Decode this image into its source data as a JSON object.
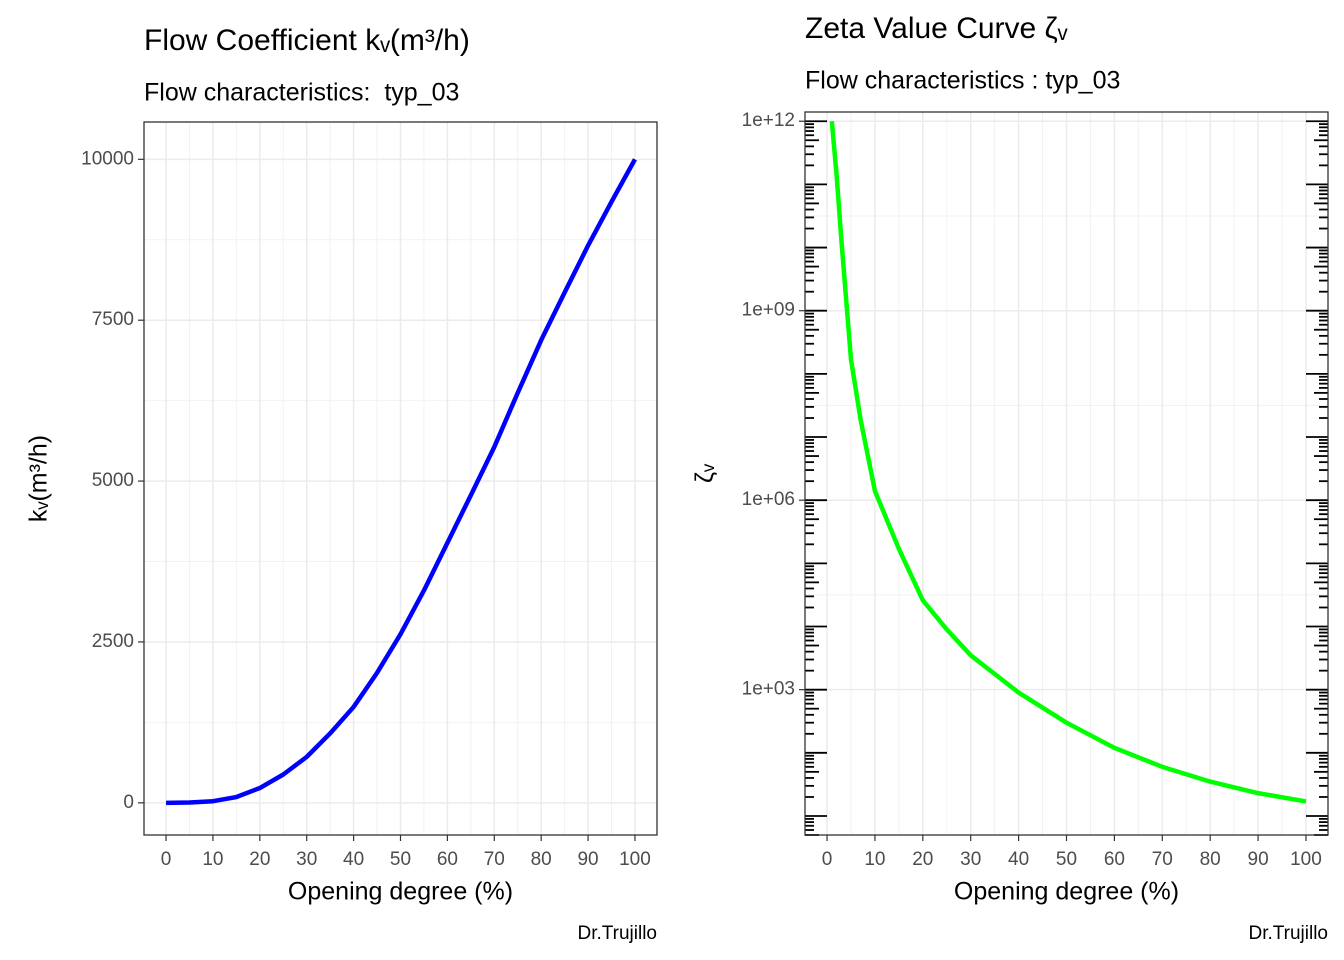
{
  "chart_data": [
    {
      "type": "line",
      "title": "Flow Coefficient kᵥ(m³/h)",
      "subtitle": "Flow characteristics:  typ_03",
      "x_label": "Opening degree (%)",
      "y_label": "kᵥ(m³/h)",
      "caption": "Dr.Trujillo",
      "x": [
        0,
        5,
        10,
        15,
        20,
        25,
        30,
        35,
        40,
        45,
        50,
        55,
        60,
        65,
        70,
        75,
        80,
        85,
        90,
        95,
        100
      ],
      "series": [
        {
          "color": "#0000ff",
          "values": [
            0,
            5,
            25,
            90,
            230,
            440,
            714,
            1080,
            1490,
            2020,
            2620,
            3300,
            4040,
            4780,
            5530,
            6370,
            7190,
            7930,
            8660,
            9340,
            10000
          ]
        }
      ],
      "xlim": [
        -4.7,
        104.7
      ],
      "xticks": [
        0,
        10,
        20,
        30,
        40,
        50,
        60,
        70,
        80,
        90,
        100
      ],
      "ylim": [
        -500,
        10580
      ],
      "yticks": [
        0,
        2500,
        5000,
        7500,
        10000
      ],
      "grid": true,
      "log_y": false
    },
    {
      "type": "line",
      "title": "Zeta Value Curve ζᵥ",
      "subtitle": "Flow characteristics : typ_03",
      "x_label": "Opening degree (%)",
      "y_label": "ζᵥ",
      "caption": "Dr.Trujillo",
      "x": [
        1,
        2,
        3,
        5,
        7,
        10,
        15,
        20,
        25,
        30,
        40,
        50,
        60,
        70,
        80,
        90,
        100
      ],
      "series": [
        {
          "color": "#00ff00",
          "values": [
            1000000000000,
            140000000000,
            13000000000,
            170000000,
            19000000,
            1400000,
            170000,
            26000,
            9000,
            3500,
            900,
            300,
            120,
            60,
            35,
            23,
            17
          ]
        }
      ],
      "xlim": [
        -4.6,
        104.6
      ],
      "xticks": [
        0,
        10,
        20,
        30,
        40,
        50,
        60,
        70,
        80,
        90,
        100
      ],
      "ylim": [
        5,
        1400000000000
      ],
      "yticks": [
        {
          "value": 1000,
          "label": "1e+03"
        },
        {
          "value": 1000000,
          "label": "1e+06"
        },
        {
          "value": 1000000000,
          "label": "1e+09"
        },
        {
          "value": 1000000000000,
          "label": "1e+12"
        }
      ],
      "grid": true,
      "log_y": true
    }
  ]
}
